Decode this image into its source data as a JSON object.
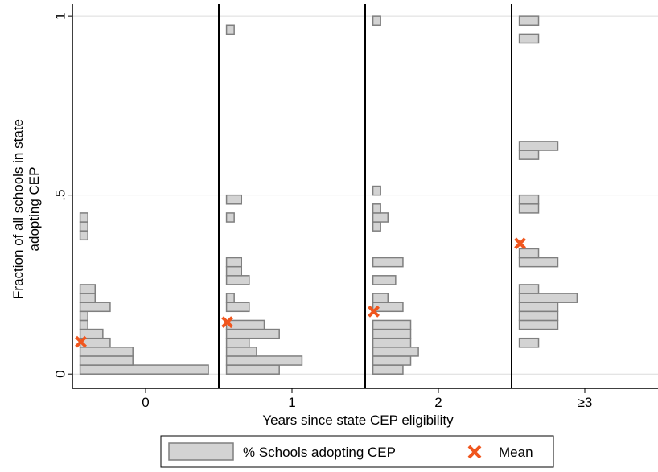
{
  "chart_data": {
    "type": "histogram",
    "orientation": "horizontal",
    "y_label": [
      "Fraction of all schools in state",
      "adopting CEP"
    ],
    "x_label": "Years since state CEP eligibility",
    "ylim": [
      -0.04,
      1.034
    ],
    "yticks": [
      0,
      {
        "value": 0.5,
        "label": ".5"
      },
      1
    ],
    "grid": true,
    "xlim": [
      -2,
      36
    ],
    "bins": [
      0,
      0.025,
      0.05,
      0.075,
      0.1,
      0.125,
      0.15,
      0.175,
      0.2,
      0.225,
      0.25,
      0.275,
      0.3,
      0.325,
      0.35,
      0.375,
      0.4,
      0.425,
      0.45,
      0.475,
      0.5,
      0.525,
      0.55,
      0.575,
      0.6,
      0.625,
      0.65,
      0.675,
      0.7,
      0.725,
      0.75,
      0.775,
      0.8,
      0.825,
      0.85,
      0.875,
      0.9,
      0.925,
      0.95,
      0.975,
      1
    ],
    "categories": [
      "0",
      "1",
      "2",
      "≥3"
    ],
    "series": [
      {
        "name": "% Schools adopting CEP",
        "color": "#d3d3d3",
        "edge_color": "#7f7f7f",
        "values": [
          [
            33.3,
            13.7,
            13.7,
            7.8,
            5.9,
            2.0,
            2.0,
            7.8,
            3.9,
            3.9,
            0,
            0,
            0,
            0,
            0,
            2.0,
            2.0,
            2.0,
            0,
            0,
            0,
            0,
            0,
            0,
            0,
            0,
            0,
            0,
            0,
            0,
            0,
            0,
            0,
            0,
            0,
            0,
            0,
            0,
            0,
            0
          ],
          [
            13.7,
            19.6,
            7.8,
            5.9,
            13.7,
            9.8,
            0,
            5.9,
            2.0,
            0,
            5.9,
            3.9,
            3.9,
            0,
            0,
            0,
            0,
            2.0,
            0,
            3.9,
            0,
            0,
            0,
            0,
            0,
            0,
            0,
            0,
            0,
            0,
            0,
            0,
            0,
            0,
            0,
            0,
            0,
            0,
            2.0,
            0
          ],
          [
            7.8,
            9.8,
            11.8,
            9.8,
            9.8,
            9.8,
            0,
            7.8,
            3.9,
            0,
            5.9,
            0,
            7.8,
            0,
            0,
            0,
            2.0,
            3.9,
            2.0,
            0,
            2.0,
            0,
            0,
            0,
            0,
            0,
            0,
            0,
            0,
            0,
            0,
            0,
            0,
            0,
            0,
            0,
            0,
            0,
            0,
            2.0
          ],
          [
            0,
            0,
            0,
            5,
            0,
            10,
            10,
            10,
            15,
            5,
            0,
            0,
            10,
            5,
            0,
            0,
            0,
            0,
            5,
            5,
            0,
            0,
            0,
            0,
            5,
            10,
            0,
            0,
            0,
            0,
            0,
            0,
            0,
            0,
            0,
            0,
            0,
            5,
            0,
            5
          ]
        ]
      },
      {
        "name": "Mean",
        "color": "#f0561e",
        "values": [
          0.09,
          0.145,
          0.175,
          0.365
        ]
      }
    ]
  }
}
